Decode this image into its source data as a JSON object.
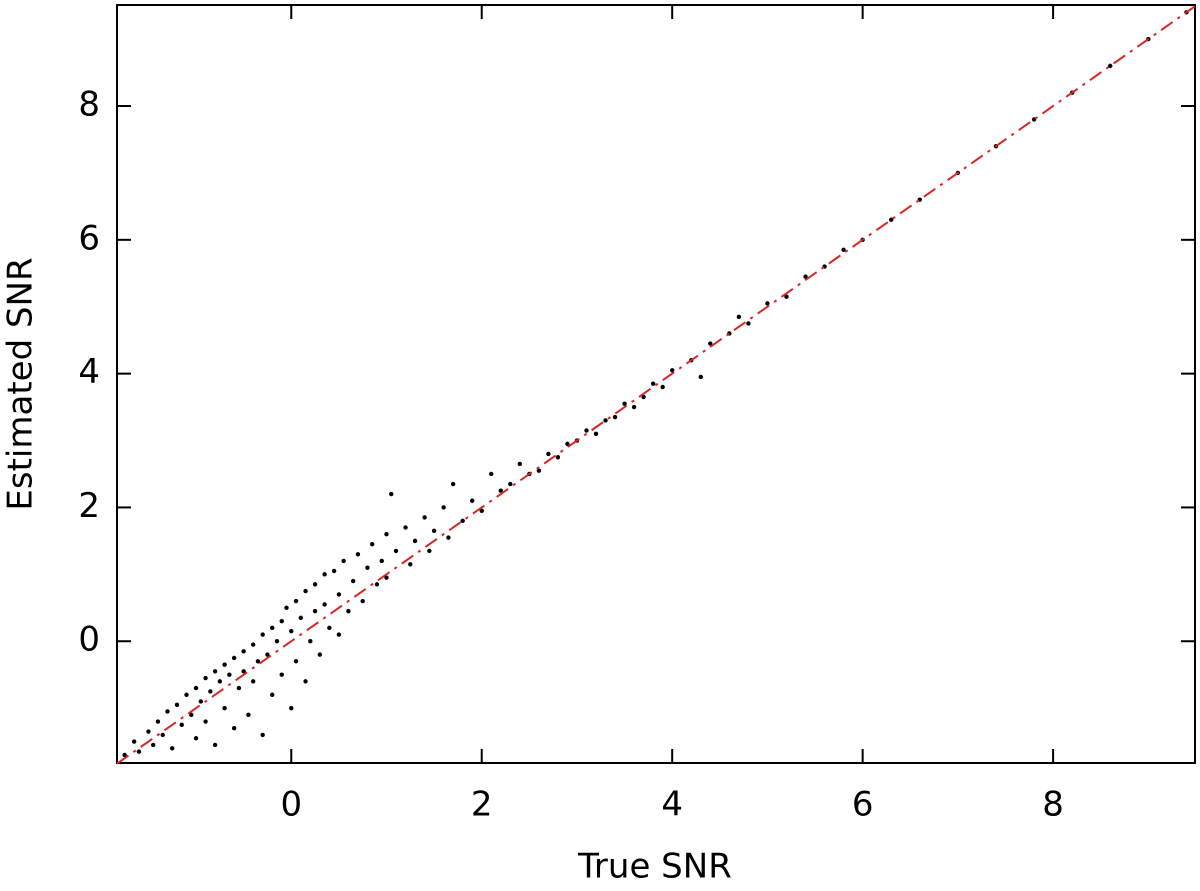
{
  "chart_data": {
    "type": "scatter",
    "xlabel": "True SNR",
    "ylabel": "Estimated SNR",
    "xlim": [
      -1.83,
      9.49
    ],
    "ylim": [
      -1.82,
      9.51
    ],
    "xticks": [
      0,
      2,
      4,
      6,
      8
    ],
    "yticks": [
      0,
      2,
      4,
      6,
      8
    ],
    "series": [
      {
        "color": "#000000",
        "x": [
          -1.75,
          -1.65,
          -1.6,
          -1.5,
          -1.45,
          -1.4,
          -1.35,
          -1.3,
          -1.25,
          -1.2,
          -1.15,
          -1.1,
          -1.05,
          -1.0,
          -1.0,
          -0.95,
          -0.9,
          -0.9,
          -0.85,
          -0.8,
          -0.8,
          -0.75,
          -0.7,
          -0.7,
          -0.65,
          -0.6,
          -0.6,
          -0.55,
          -0.5,
          -0.5,
          -0.45,
          -0.4,
          -0.4,
          -0.35,
          -0.3,
          -0.3,
          -0.25,
          -0.2,
          -0.2,
          -0.15,
          -0.1,
          -0.1,
          -0.05,
          0,
          0,
          0.05,
          0.05,
          0.1,
          0.15,
          0.15,
          0.2,
          0.25,
          0.25,
          0.3,
          0.35,
          0.35,
          0.4,
          0.45,
          0.5,
          0.5,
          0.55,
          0.6,
          0.65,
          0.7,
          0.75,
          0.8,
          0.85,
          0.9,
          0.95,
          1.0,
          1.0,
          1.05,
          1.1,
          1.2,
          1.25,
          1.3,
          1.4,
          1.45,
          1.5,
          1.6,
          1.65,
          1.7,
          1.8,
          1.9,
          2.0,
          2.1,
          2.2,
          2.3,
          2.4,
          2.5,
          2.6,
          2.7,
          2.8,
          2.9,
          3.0,
          3.1,
          3.2,
          3.3,
          3.4,
          3.5,
          3.6,
          3.7,
          3.8,
          3.9,
          4.0,
          4.2,
          4.3,
          4.4,
          4.6,
          4.7,
          4.8,
          5.0,
          5.2,
          5.4,
          5.6,
          5.8,
          6.0,
          6.3,
          6.6,
          7.0,
          7.4,
          7.8,
          8.2,
          8.6,
          9.0,
          9.4
        ],
        "values": [
          -1.7,
          -1.5,
          -1.65,
          -1.35,
          -1.55,
          -1.2,
          -1.4,
          -1.05,
          -1.6,
          -0.95,
          -1.25,
          -0.8,
          -1.1,
          -0.7,
          -1.45,
          -0.9,
          -0.55,
          -1.2,
          -0.75,
          -0.45,
          -1.55,
          -0.6,
          -0.35,
          -1.0,
          -0.5,
          -0.25,
          -1.3,
          -0.7,
          -0.15,
          -0.45,
          -1.1,
          -0.05,
          -0.6,
          -0.3,
          0.1,
          -1.4,
          -0.2,
          0.2,
          -0.8,
          0.0,
          0.3,
          -0.5,
          0.5,
          0.15,
          -1.0,
          0.6,
          -0.3,
          0.35,
          0.75,
          -0.6,
          0.0,
          0.85,
          0.45,
          -0.2,
          1.0,
          0.55,
          0.2,
          1.05,
          0.7,
          0.1,
          1.2,
          0.45,
          0.9,
          1.3,
          0.6,
          1.1,
          1.45,
          0.85,
          1.2,
          1.6,
          0.95,
          2.2,
          1.35,
          1.7,
          1.15,
          1.5,
          1.85,
          1.35,
          1.65,
          2.0,
          1.55,
          2.35,
          1.8,
          2.1,
          1.95,
          2.5,
          2.25,
          2.35,
          2.65,
          2.5,
          2.55,
          2.8,
          2.75,
          2.95,
          3.0,
          3.15,
          3.1,
          3.3,
          3.35,
          3.55,
          3.5,
          3.65,
          3.85,
          3.8,
          4.05,
          4.2,
          3.95,
          4.45,
          4.6,
          4.85,
          4.75,
          5.05,
          5.15,
          5.45,
          5.6,
          5.85,
          6.0,
          6.3,
          6.6,
          7.0,
          7.4,
          7.8,
          8.2,
          8.6,
          9.0,
          9.4
        ]
      }
    ],
    "reference_line": {
      "x": [
        -1.83,
        9.49
      ],
      "values": [
        -1.83,
        9.49
      ],
      "color": "#d62728",
      "dashed": true
    }
  }
}
